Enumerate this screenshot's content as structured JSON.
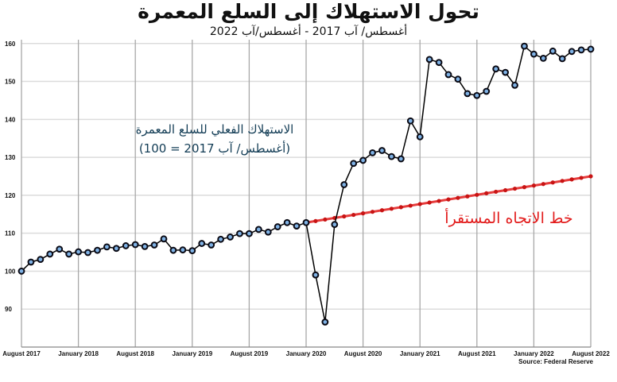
{
  "chart_data": {
    "type": "line",
    "title": "تحول الاستهلاك إلى السلع المعمرة",
    "subtitle": "أغسطس/ آب 2017 - أغسطس/آب 2022",
    "xlabel": "",
    "ylabel": "",
    "ylim": [
      80,
      161
    ],
    "yticks": [
      90,
      100,
      110,
      120,
      130,
      140,
      150,
      160
    ],
    "xtick_labels": [
      "August 2017",
      "January 2018",
      "August 2018",
      "January 2019",
      "August 2019",
      "January 2020",
      "August 2020",
      "January 2021",
      "August 2021",
      "January 2022",
      "August 2022"
    ],
    "x_start": "2017-08",
    "x_end": "2022-08",
    "grid": true,
    "source": "Source: Federal Reserve",
    "series": [
      {
        "label": [
          "الاستهلاك الفعلي للسلع المعمرة",
          "(أغسطس/ آب 2017 = 100)"
        ],
        "color": "#000000",
        "marker_color": "#7fb2e5",
        "values": [
          100,
          102.4,
          103.1,
          104.5,
          105.8,
          104.5,
          105.1,
          104.9,
          105.5,
          106.4,
          106,
          106.7,
          107,
          106.5,
          106.9,
          108.5,
          105.5,
          105.6,
          105.4,
          107.3,
          106.9,
          108.4,
          109,
          109.9,
          109.9,
          111,
          110.3,
          111.7,
          112.8,
          111.9,
          112.8,
          99,
          86.6,
          112.3,
          122.8,
          128.4,
          129.2,
          131.2,
          131.8,
          130.2,
          129.6,
          139.6,
          135.4,
          155.8,
          155,
          151.8,
          150.6,
          146.8,
          146.3,
          147.4,
          153.3,
          152.4,
          149,
          159.3,
          157.2,
          156.1,
          158,
          156,
          157.9,
          158.3,
          158.5
        ]
      },
      {
        "label": [
          "خط الاتجاه المستقرأ"
        ],
        "color": "#e21b1b",
        "start_month": "2020-02",
        "end_month": "2022-08",
        "start_value": 112.8,
        "end_value": 125
      }
    ]
  }
}
